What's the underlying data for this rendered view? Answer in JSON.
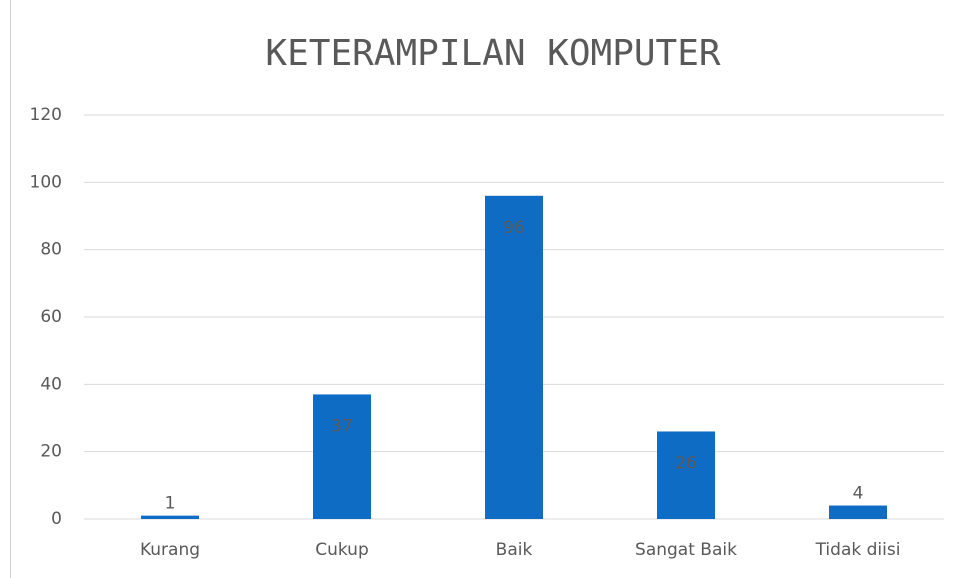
{
  "chart_data": {
    "type": "bar",
    "title": "KETERAMPILAN KOMPUTER",
    "categories": [
      "Kurang",
      "Cukup",
      "Baik",
      "Sangat Baik",
      "Tidak diisi"
    ],
    "values": [
      1,
      37,
      96,
      26,
      4
    ],
    "color": "#0f6cc5",
    "ylim": [
      0,
      120
    ],
    "yticks": [
      0,
      20,
      40,
      60,
      80,
      100,
      120
    ],
    "grid": true
  }
}
